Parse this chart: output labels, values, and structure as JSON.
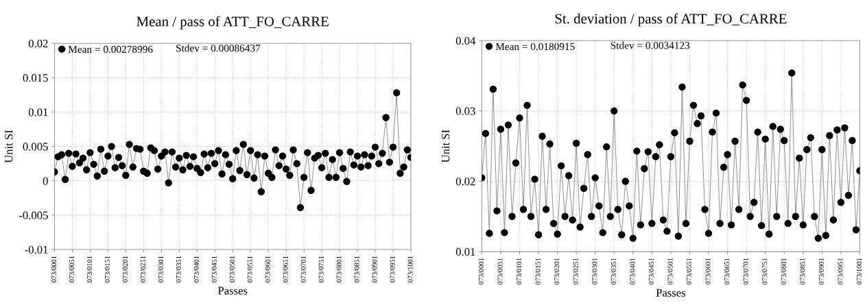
{
  "chart_data": [
    {
      "type": "line",
      "title": "Mean / pass of ATT_FO_CARRE",
      "xlabel": "Passes",
      "ylabel": "Unit SI",
      "marker": "circle",
      "line_style": "solid",
      "grid": true,
      "legend": "top left",
      "annotations": [
        "Stdev = 0.00086437"
      ],
      "ylim": [
        -0.01,
        0.02
      ],
      "yticks": [
        -0.01,
        -0.005,
        0,
        0.005,
        0.01,
        0.015,
        0.02
      ],
      "categories": [
        "073/0001",
        null,
        null,
        null,
        null,
        "073/0051",
        null,
        null,
        null,
        null,
        "073/0101",
        null,
        null,
        null,
        null,
        "073/0151",
        null,
        null,
        null,
        null,
        "073/0201",
        null,
        null,
        null,
        null,
        "073/0251",
        null,
        null,
        null,
        null,
        "073/0301",
        null,
        null,
        null,
        null,
        "073/0351",
        null,
        null,
        null,
        null,
        "073/0401",
        null,
        null,
        null,
        null,
        "073/0451",
        null,
        null,
        null,
        null,
        "073/0501",
        null,
        null,
        null,
        null,
        "073/0551",
        null,
        null,
        null,
        null,
        "073/0601",
        null,
        null,
        null,
        null,
        "073/0651",
        null,
        null,
        null,
        null,
        "073/0701",
        null,
        null,
        null,
        null,
        "073/0751",
        null,
        null,
        null,
        null,
        "073/0801",
        null,
        null,
        null,
        null,
        "073/0851",
        null,
        null,
        null,
        null,
        "073/0901",
        null,
        null,
        null,
        null,
        "073/0951",
        null,
        null,
        null,
        null,
        "073/1001"
      ],
      "series": [
        {
          "name": "Mean = 0.00278996",
          "color": "#000000",
          "values": [
            0.0013,
            0.0035,
            0.0038,
            0.0002,
            0.004,
            0.0021,
            0.0039,
            0.0026,
            0.0033,
            0.0016,
            0.0041,
            0.0024,
            0.0007,
            0.0046,
            0.0014,
            0.0036,
            0.005,
            0.0019,
            0.0034,
            0.0022,
            0.0008,
            0.0053,
            0.002,
            0.0047,
            0.0046,
            0.0014,
            0.0011,
            0.0048,
            0.0044,
            0.0017,
            0.0036,
            0.0042,
            -0.0003,
            0.0042,
            0.002,
            0.0033,
            0.0016,
            0.0037,
            0.0021,
            0.0035,
            0.0018,
            0.0012,
            0.0039,
            0.0019,
            0.004,
            0.0025,
            0.0044,
            0.001,
            0.0038,
            0.0024,
            0.0003,
            0.0044,
            0.0015,
            0.0053,
            0.0009,
            0.0044,
            0.0004,
            0.0038,
            -0.0016,
            0.0036,
            0.0011,
            0.0005,
            0.0045,
            0.0022,
            0.0036,
            0.0017,
            0.0008,
            0.0045,
            0.0025,
            -0.0039,
            0.0005,
            0.0041,
            -0.0014,
            0.0033,
            0.0037,
            0.0019,
            0.004,
            0.0005,
            0.0031,
            0.0005,
            0.0041,
            0.0018,
            -0.0001,
            0.0042,
            0.0023,
            0.0036,
            0.002,
            0.0038,
            0.0022,
            0.0036,
            0.0049,
            0.0025,
            0.004,
            0.0092,
            0.0027,
            0.0049,
            0.0128,
            0.0011,
            0.002,
            0.0045,
            0.0034
          ]
        }
      ]
    },
    {
      "type": "line",
      "title": "St. deviation / pass of ATT_FO_CARRE",
      "xlabel": "Passes",
      "ylabel": "Unit SI",
      "marker": "circle",
      "line_style": "solid",
      "grid": true,
      "legend": "top left",
      "annotations": [
        "Stdev = 0.0034123"
      ],
      "ylim": [
        0.01,
        0.04
      ],
      "yticks": [
        0.01,
        0.02,
        0.03,
        0.04
      ],
      "categories": [
        "073/0001",
        null,
        null,
        null,
        null,
        "073/0051",
        null,
        null,
        null,
        null,
        "073/0101",
        null,
        null,
        null,
        null,
        "073/0151",
        null,
        null,
        null,
        null,
        "073/0201",
        null,
        null,
        null,
        null,
        "073/0251",
        null,
        null,
        null,
        null,
        "073/0301",
        null,
        null,
        null,
        null,
        "073/0351",
        null,
        null,
        null,
        null,
        "073/0401",
        null,
        null,
        null,
        null,
        "073/0451",
        null,
        null,
        null,
        null,
        "073/0501",
        null,
        null,
        null,
        null,
        "073/0551",
        null,
        null,
        null,
        null,
        "073/0601",
        null,
        null,
        null,
        null,
        "073/0651",
        null,
        null,
        null,
        null,
        "073/0701",
        null,
        null,
        null,
        null,
        "073/0751",
        null,
        null,
        null,
        null,
        "073/0801",
        null,
        null,
        null,
        null,
        "073/0851",
        null,
        null,
        null,
        null,
        "073/0901",
        null,
        null,
        null,
        null,
        "073/0951",
        null,
        null,
        null,
        null,
        "073/1001"
      ],
      "series": [
        {
          "name": "Mean = 0.0180915",
          "color": "#000000",
          "values": [
            0.0205,
            0.0268,
            0.0126,
            0.0331,
            0.0158,
            0.0274,
            0.0127,
            0.028,
            0.015,
            0.0226,
            0.029,
            0.016,
            0.0308,
            0.015,
            0.0203,
            0.0124,
            0.0264,
            0.016,
            0.0253,
            0.014,
            0.0125,
            0.0222,
            0.015,
            0.0208,
            0.0145,
            0.0254,
            0.0135,
            0.019,
            0.0238,
            0.015,
            0.0205,
            0.0165,
            0.0127,
            0.0249,
            0.015,
            0.03,
            0.016,
            0.0124,
            0.02,
            0.0165,
            0.0119,
            0.0243,
            0.0138,
            0.0218,
            0.0242,
            0.014,
            0.0235,
            0.0252,
            0.0145,
            0.0129,
            0.0235,
            0.0269,
            0.0122,
            0.0334,
            0.014,
            0.0257,
            0.0308,
            0.0282,
            0.0293,
            0.016,
            0.0126,
            0.027,
            0.0297,
            0.014,
            0.022,
            0.0238,
            0.0138,
            0.0257,
            0.016,
            0.0337,
            0.0315,
            0.015,
            0.017,
            0.027,
            0.0137,
            0.026,
            0.0125,
            0.0278,
            0.015,
            0.0274,
            0.0258,
            0.014,
            0.0354,
            0.015,
            0.0233,
            0.0138,
            0.0245,
            0.0262,
            0.015,
            0.0119,
            0.0245,
            0.0123,
            0.0265,
            0.0145,
            0.0273,
            0.017,
            0.0276,
            0.018,
            0.0258,
            0.0131,
            0.0215
          ]
        }
      ]
    }
  ]
}
